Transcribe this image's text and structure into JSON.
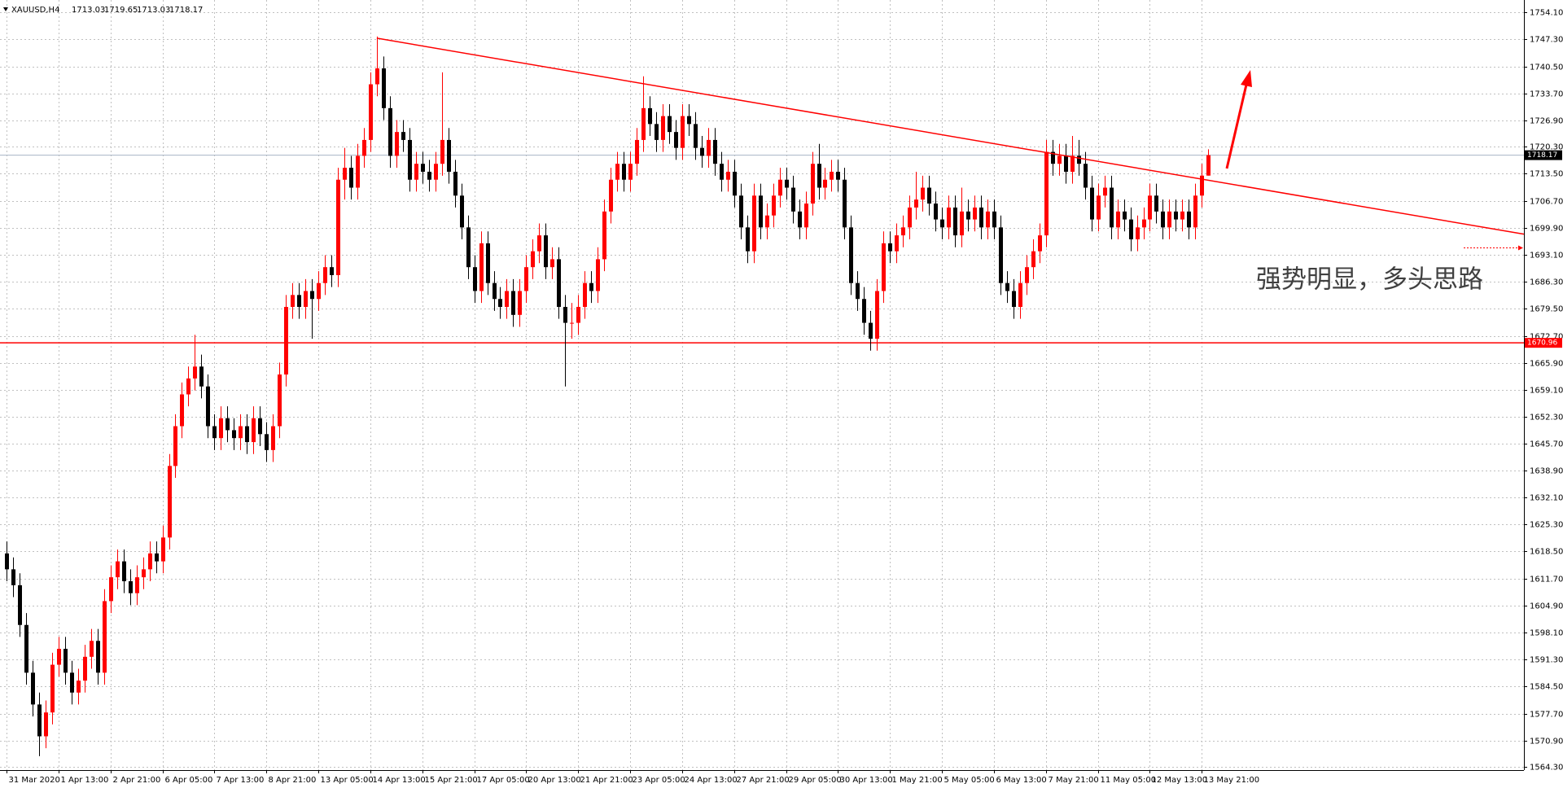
{
  "chart_data": {
    "type": "candlestick",
    "title": "XAUUSD,H4",
    "annotation": "强势明显，多头思路",
    "up_color": "#ff0000",
    "down_color": "#000000",
    "grid": true,
    "categories": [
      "31 Mar 2020",
      null,
      null,
      null,
      null,
      null,
      null,
      null,
      "1 Apr 13:00",
      null,
      null,
      null,
      null,
      null,
      null,
      null,
      "2 Apr 21:00",
      null,
      null,
      null,
      null,
      null,
      null,
      null,
      "6 Apr 05:00",
      null,
      null,
      null,
      null,
      null,
      null,
      null,
      "7 Apr 13:00",
      null,
      null,
      null,
      null,
      null,
      null,
      null,
      "8 Apr 21:00",
      null,
      null,
      null,
      null,
      null,
      null,
      null,
      "13 Apr 05:00",
      null,
      null,
      null,
      null,
      null,
      null,
      null,
      "14 Apr 13:00",
      null,
      null,
      null,
      null,
      null,
      null,
      null,
      "15 Apr 21:00",
      null,
      null,
      null,
      null,
      null,
      null,
      null,
      "17 Apr 05:00",
      null,
      null,
      null,
      null,
      null,
      null,
      null,
      "20 Apr 13:00",
      null,
      null,
      null,
      null,
      null,
      null,
      null,
      "21 Apr 21:00",
      null,
      null,
      null,
      null,
      null,
      null,
      null,
      "23 Apr 05:00",
      null,
      null,
      null,
      null,
      null,
      null,
      null,
      "24 Apr 13:00",
      null,
      null,
      null,
      null,
      null,
      null,
      null,
      "27 Apr 21:00",
      null,
      null,
      null,
      null,
      null,
      null,
      null,
      "29 Apr 05:00",
      null,
      null,
      null,
      null,
      null,
      null,
      null,
      "30 Apr 13:00",
      null,
      null,
      null,
      null,
      null,
      null,
      null,
      "1 May 21:00",
      null,
      null,
      null,
      null,
      null,
      null,
      null,
      "5 May 05:00",
      null,
      null,
      null,
      null,
      null,
      null,
      null,
      "6 May 13:00",
      null,
      null,
      null,
      null,
      null,
      null,
      null,
      "7 May 21:00",
      null,
      null,
      null,
      null,
      null,
      null,
      null,
      "11 May 05:00",
      null,
      null,
      null,
      null,
      null,
      null,
      null,
      "12 May 13:00",
      null,
      null,
      null,
      null,
      null,
      null,
      null,
      "13 May 21:00",
      null
    ],
    "open": [
      1618,
      1614,
      1610,
      1600,
      1588,
      1580,
      1572,
      1578,
      1590,
      1594,
      1588,
      1583,
      1586,
      1592,
      1596,
      1588,
      1606,
      1612,
      1616,
      1611,
      1608,
      1612,
      1614,
      1618,
      1616,
      1622,
      1640,
      1650,
      1658,
      1662,
      1665,
      1660,
      1650,
      1647,
      1652,
      1649,
      1647,
      1650,
      1646,
      1652,
      1648,
      1644,
      1650,
      1663,
      1680,
      1683,
      1680,
      1684,
      1682,
      1686,
      1690,
      1688,
      1712,
      1715,
      1710,
      1718,
      1722,
      1736,
      1740,
      1730,
      1718,
      1724,
      1722,
      1712,
      1716,
      1714,
      1712,
      1716,
      1722,
      1714,
      1708,
      1700,
      1690,
      1684,
      1696,
      1686,
      1682,
      1680,
      1684,
      1678,
      1684,
      1690,
      1694,
      1698,
      1690,
      1692,
      1680,
      1676,
      1676,
      1680,
      1686,
      1684,
      1692,
      1704,
      1712,
      1716,
      1712,
      1716,
      1722,
      1730,
      1726,
      1722,
      1728,
      1724,
      1720,
      1728,
      1726,
      1720,
      1718,
      1722,
      1716,
      1712,
      1714,
      1708,
      1700,
      1694,
      1708,
      1700,
      1703,
      1708,
      1712,
      1710,
      1704,
      1700,
      1706,
      1716,
      1710,
      1712,
      1714,
      1712,
      1700,
      1686,
      1682,
      1676,
      1672,
      1684,
      1696,
      1694,
      1698,
      1700,
      1705,
      1707,
      1710,
      1706,
      1702,
      1700,
      1705,
      1698,
      1704,
      1702,
      1705,
      1700,
      1704,
      1700,
      1686,
      1684,
      1680,
      1686,
      1690,
      1694,
      1698,
      1719,
      1716,
      1718,
      1714,
      1718,
      1716,
      1710,
      1702,
      1708,
      1710,
      1700,
      1704,
      1702,
      1697,
      1700,
      1702,
      1708,
      1704,
      1700,
      1704,
      1702,
      1704,
      1700,
      1708,
      1713.03
    ],
    "high": [
      1621,
      1617,
      1613,
      1603,
      1591,
      1583,
      1581,
      1593,
      1597,
      1597,
      1591,
      1589,
      1595,
      1599,
      1599,
      1609,
      1615,
      1619,
      1619,
      1614,
      1615,
      1617,
      1621,
      1621,
      1625,
      1643,
      1653,
      1661,
      1665,
      1673,
      1668,
      1663,
      1653,
      1655,
      1655,
      1652,
      1653,
      1653,
      1655,
      1655,
      1651,
      1653,
      1666,
      1683,
      1686,
      1686,
      1687,
      1687,
      1689,
      1693,
      1693,
      1715,
      1720,
      1718,
      1721,
      1725,
      1739,
      1748,
      1743,
      1733,
      1727,
      1727,
      1725,
      1719,
      1719,
      1717,
      1719,
      1739,
      1725,
      1717,
      1711,
      1703,
      1693,
      1699,
      1699,
      1689,
      1685,
      1687,
      1687,
      1687,
      1693,
      1697,
      1701,
      1701,
      1695,
      1695,
      1683,
      1681,
      1683,
      1689,
      1689,
      1695,
      1707,
      1715,
      1719,
      1719,
      1719,
      1725,
      1738,
      1733,
      1729,
      1731,
      1731,
      1727,
      1731,
      1731,
      1729,
      1723,
      1725,
      1725,
      1719,
      1717,
      1717,
      1711,
      1703,
      1711,
      1711,
      1706,
      1711,
      1715,
      1715,
      1713,
      1707,
      1709,
      1719,
      1721,
      1715,
      1717,
      1717,
      1715,
      1703,
      1689,
      1685,
      1679,
      1687,
      1699,
      1699,
      1701,
      1703,
      1708,
      1714,
      1713,
      1713,
      1709,
      1705,
      1708,
      1708,
      1710,
      1707,
      1708,
      1708,
      1707,
      1707,
      1703,
      1689,
      1687,
      1689,
      1693,
      1697,
      1701,
      1722,
      1722,
      1721,
      1721,
      1723,
      1722,
      1719,
      1713,
      1711,
      1713,
      1713,
      1707,
      1707,
      1705,
      1703,
      1705,
      1711,
      1711,
      1707,
      1707,
      1707,
      1707,
      1707,
      1711,
      1716,
      1719.65
    ],
    "low": [
      1611,
      1607,
      1597,
      1585,
      1577,
      1567,
      1569,
      1575,
      1587,
      1585,
      1580,
      1580,
      1583,
      1589,
      1585,
      1585,
      1603,
      1609,
      1608,
      1605,
      1605,
      1609,
      1611,
      1613,
      1613,
      1619,
      1637,
      1647,
      1655,
      1659,
      1657,
      1647,
      1644,
      1644,
      1646,
      1644,
      1644,
      1643,
      1643,
      1645,
      1641,
      1641,
      1647,
      1660,
      1677,
      1677,
      1677,
      1672,
      1679,
      1683,
      1685,
      1685,
      1707,
      1707,
      1707,
      1715,
      1719,
      1733,
      1727,
      1715,
      1715,
      1719,
      1709,
      1709,
      1711,
      1709,
      1709,
      1713,
      1711,
      1705,
      1697,
      1687,
      1681,
      1681,
      1683,
      1679,
      1677,
      1677,
      1675,
      1675,
      1681,
      1687,
      1691,
      1687,
      1687,
      1677,
      1660,
      1672,
      1673,
      1677,
      1681,
      1681,
      1689,
      1701,
      1709,
      1709,
      1709,
      1713,
      1719,
      1723,
      1719,
      1719,
      1721,
      1717,
      1717,
      1723,
      1717,
      1715,
      1715,
      1713,
      1709,
      1709,
      1705,
      1697,
      1691,
      1691,
      1697,
      1697,
      1700,
      1705,
      1707,
      1701,
      1697,
      1697,
      1703,
      1707,
      1707,
      1709,
      1709,
      1697,
      1683,
      1679,
      1673,
      1669,
      1669,
      1681,
      1691,
      1691,
      1695,
      1697,
      1702,
      1704,
      1703,
      1699,
      1697,
      1697,
      1695,
      1695,
      1699,
      1699,
      1697,
      1697,
      1697,
      1683,
      1681,
      1677,
      1677,
      1683,
      1687,
      1691,
      1695,
      1713,
      1713,
      1711,
      1711,
      1713,
      1707,
      1699,
      1699,
      1705,
      1697,
      1697,
      1699,
      1694,
      1694,
      1697,
      1699,
      1701,
      1697,
      1697,
      1699,
      1699,
      1697,
      1697,
      1705,
      1713.03
    ],
    "close": [
      1614,
      1610,
      1600,
      1588,
      1580,
      1572,
      1578,
      1590,
      1594,
      1588,
      1583,
      1586,
      1592,
      1596,
      1588,
      1606,
      1612,
      1616,
      1611,
      1608,
      1612,
      1614,
      1618,
      1616,
      1622,
      1640,
      1650,
      1658,
      1662,
      1665,
      1660,
      1650,
      1647,
      1652,
      1649,
      1647,
      1650,
      1646,
      1652,
      1648,
      1644,
      1650,
      1663,
      1680,
      1683,
      1680,
      1684,
      1682,
      1686,
      1690,
      1688,
      1712,
      1715,
      1710,
      1718,
      1722,
      1736,
      1740,
      1730,
      1718,
      1724,
      1722,
      1712,
      1716,
      1714,
      1712,
      1716,
      1722,
      1714,
      1708,
      1700,
      1690,
      1684,
      1696,
      1686,
      1682,
      1680,
      1684,
      1678,
      1684,
      1690,
      1694,
      1698,
      1690,
      1692,
      1680,
      1676,
      1676,
      1680,
      1686,
      1684,
      1692,
      1704,
      1712,
      1716,
      1712,
      1716,
      1722,
      1730,
      1726,
      1722,
      1728,
      1724,
      1720,
      1728,
      1726,
      1720,
      1718,
      1722,
      1716,
      1712,
      1714,
      1708,
      1700,
      1694,
      1708,
      1700,
      1703,
      1708,
      1712,
      1710,
      1704,
      1700,
      1706,
      1716,
      1710,
      1712,
      1714,
      1712,
      1700,
      1686,
      1682,
      1676,
      1672,
      1684,
      1696,
      1694,
      1698,
      1700,
      1705,
      1707,
      1710,
      1706,
      1702,
      1700,
      1705,
      1698,
      1704,
      1702,
      1705,
      1700,
      1704,
      1700,
      1686,
      1684,
      1680,
      1686,
      1690,
      1694,
      1698,
      1719,
      1716,
      1718,
      1714,
      1718,
      1716,
      1710,
      1702,
      1708,
      1710,
      1700,
      1704,
      1702,
      1697,
      1700,
      1702,
      1708,
      1704,
      1700,
      1704,
      1702,
      1704,
      1700,
      1708,
      1713.03,
      1718.17
    ],
    "last_price": 1718.17,
    "last_price_color": "#a8b4c4",
    "hline": 1670.96,
    "hline_color": "#ff0000",
    "trendline": {
      "start": 1747.6,
      "end": 1698.3,
      "color": "#ff0000"
    },
    "ylim": [
      1563.5,
      1757.2
    ],
    "yticks": [
      {
        "value": 1754.1,
        "label": "1754.10"
      },
      {
        "value": 1747.3,
        "label": "1747.30"
      },
      {
        "value": 1740.5,
        "label": "1740.50"
      },
      {
        "value": 1733.7,
        "label": "1733.70"
      },
      {
        "value": 1726.9,
        "label": "1726.90"
      },
      {
        "value": 1720.3,
        "label": "1720.30"
      },
      {
        "value": 1713.5,
        "label": "1713.50"
      },
      {
        "value": 1706.7,
        "label": "1706.70"
      },
      {
        "value": 1699.9,
        "label": "1699.90"
      },
      {
        "value": 1693.1,
        "label": "1693.10"
      },
      {
        "value": 1686.3,
        "label": "1686.30"
      },
      {
        "value": 1679.5,
        "label": "1679.50"
      },
      {
        "value": 1672.7,
        "label": "1672.70"
      },
      {
        "value": 1665.9,
        "label": "1665.90"
      },
      {
        "value": 1659.1,
        "label": "1659.10"
      },
      {
        "value": 1652.3,
        "label": "1652.30"
      },
      {
        "value": 1645.7,
        "label": "1645.70"
      },
      {
        "value": 1638.9,
        "label": "1638.90"
      },
      {
        "value": 1632.1,
        "label": "1632.10"
      },
      {
        "value": 1625.3,
        "label": "1625.30"
      },
      {
        "value": 1618.5,
        "label": "1618.50"
      },
      {
        "value": 1611.7,
        "label": "1611.70"
      },
      {
        "value": 1604.9,
        "label": "1604.90"
      },
      {
        "value": 1598.1,
        "label": "1598.10"
      },
      {
        "value": 1591.3,
        "label": "1591.30"
      },
      {
        "value": 1584.5,
        "label": "1584.50"
      },
      {
        "value": 1577.7,
        "label": "1577.70"
      },
      {
        "value": 1570.9,
        "label": "1570.90"
      },
      {
        "value": 1564.3,
        "label": "1564.30"
      }
    ]
  }
}
